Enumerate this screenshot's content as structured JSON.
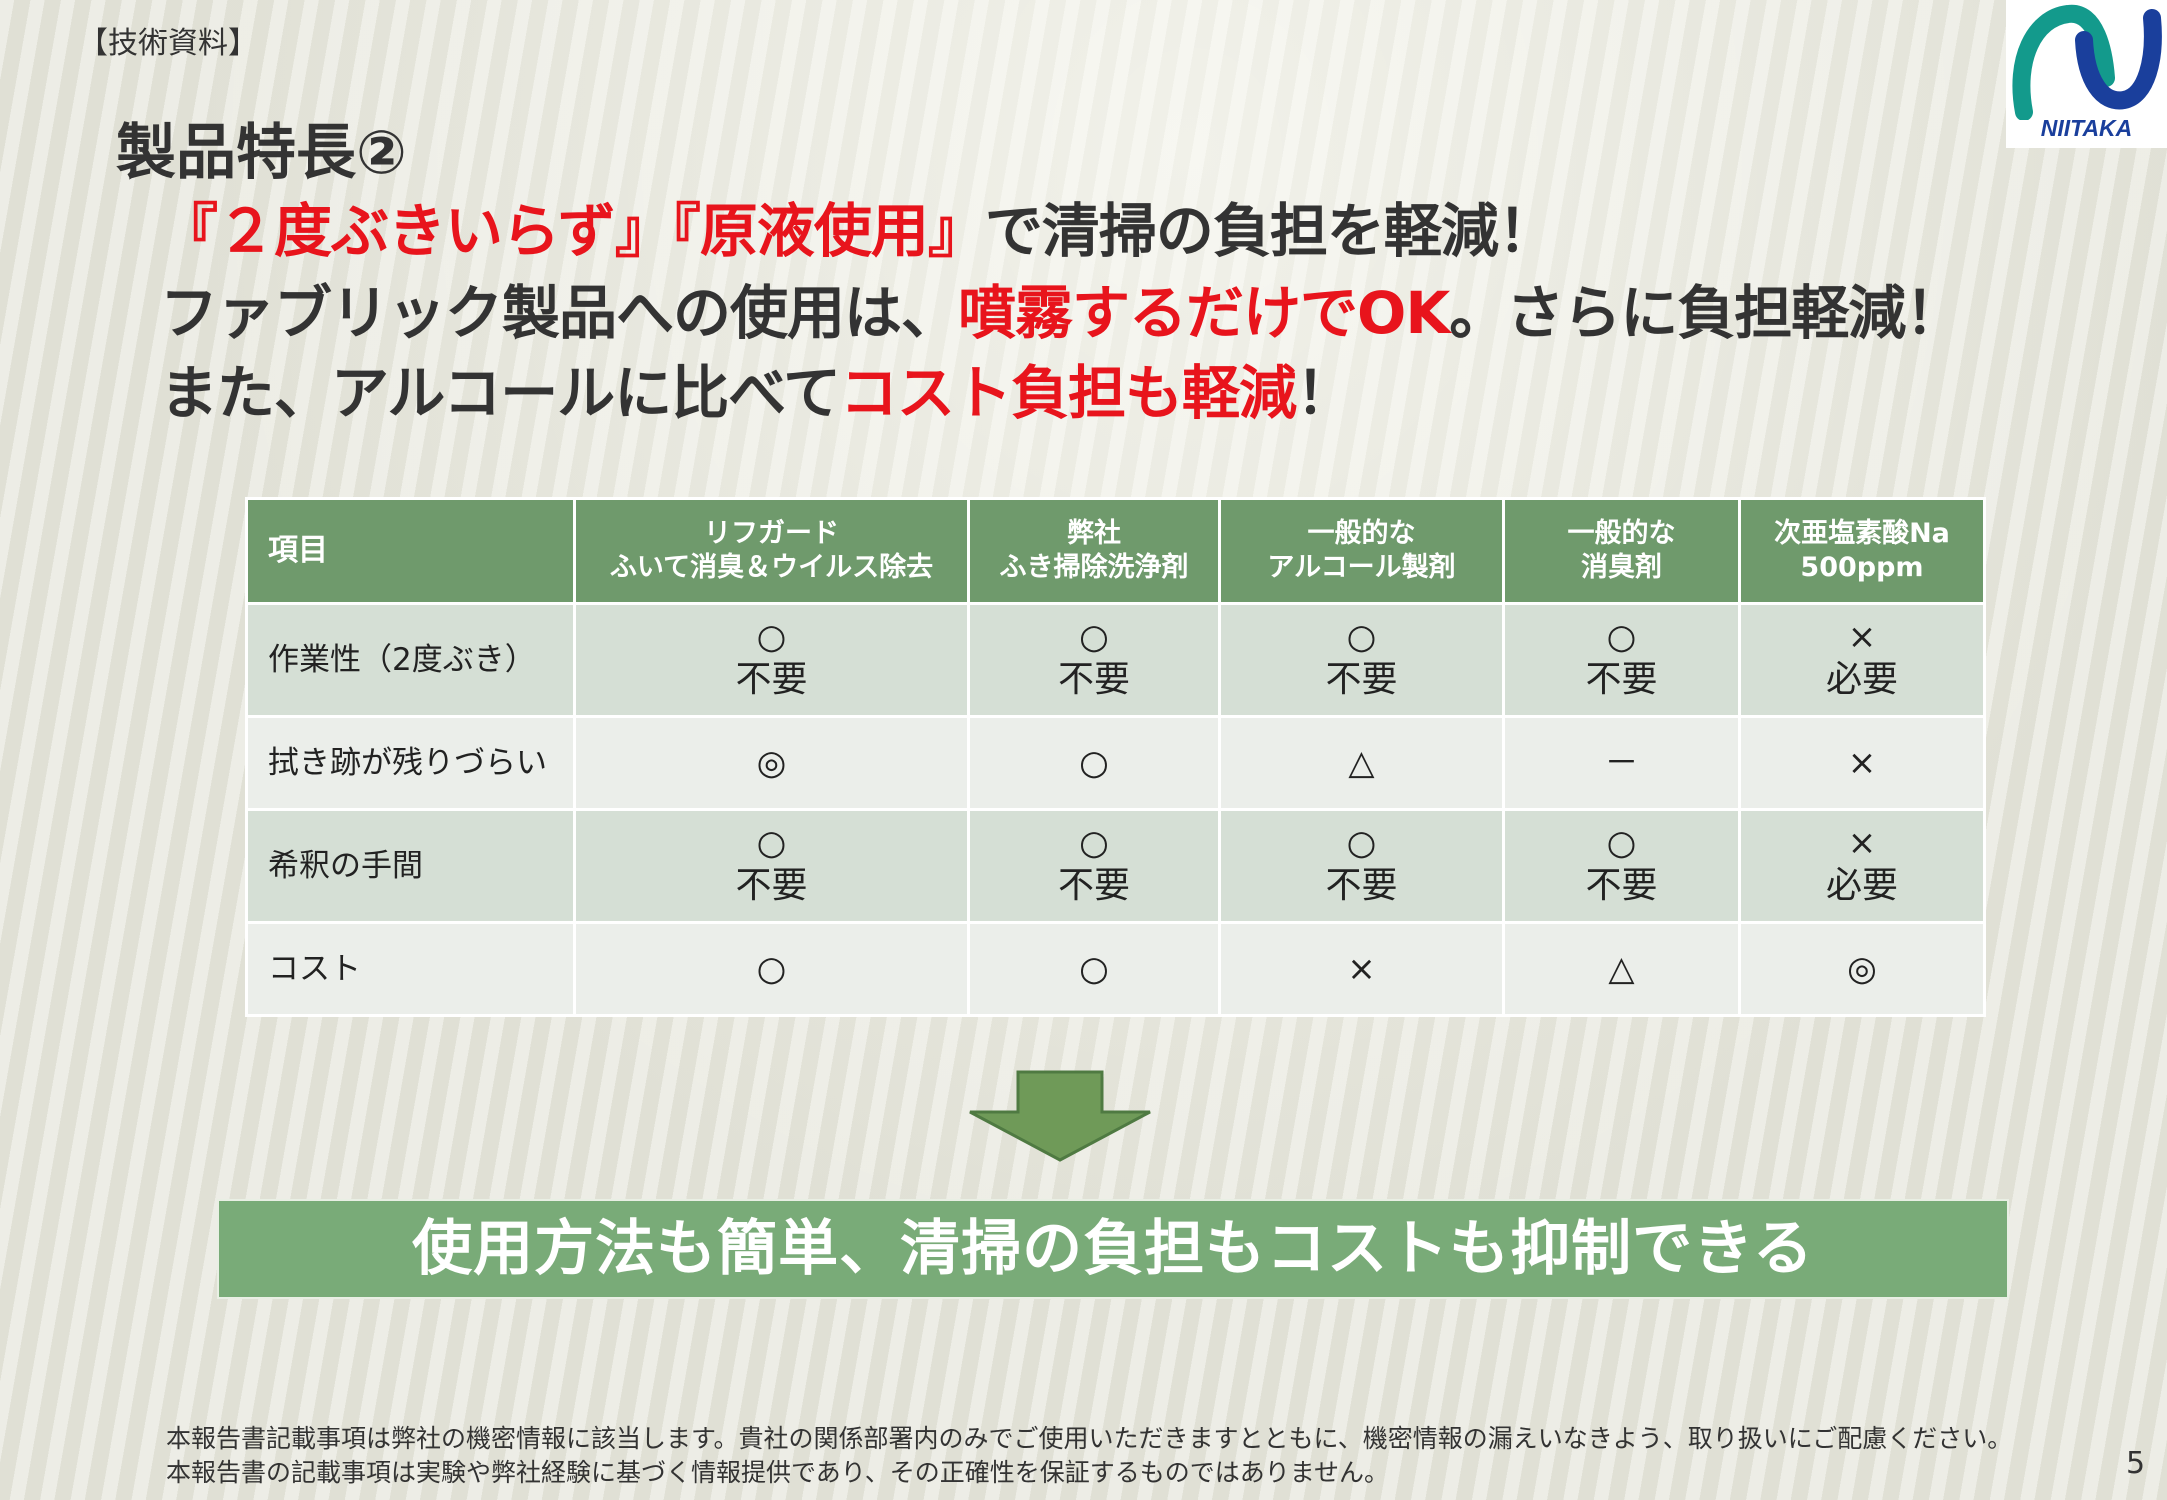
{
  "section_label": "【技術資料】",
  "logo": {
    "text": "NIITAKA",
    "colors": {
      "teal": "#139a8c",
      "blue": "#1a3f9c"
    }
  },
  "title": "製品特長②",
  "headline": {
    "line1": {
      "red": "『２度ぶきいらず』『原液使用』",
      "rest": "で清掃の負担を軽減！"
    },
    "line2": {
      "pre": "ファブリック製品への使用は、",
      "red": "噴霧するだけでOK",
      "post": "。さらに負担軽減！"
    },
    "line3": {
      "pre": "また、アルコールに比べて",
      "red": "コスト負担も軽減",
      "post": "！"
    }
  },
  "table": {
    "header": {
      "item": "項目",
      "columns": [
        {
          "line1": "リフガード",
          "line2": "ふいて消臭＆ウイルス除去"
        },
        {
          "line1": "弊社",
          "line2": "ふき掃除洗浄剤"
        },
        {
          "line1": "一般的な",
          "line2": "アルコール製剤"
        },
        {
          "line1": "一般的な",
          "line2": "消臭剤"
        },
        {
          "line1": "次亜塩素酸Na",
          "line2": "500ppm"
        }
      ]
    },
    "rows": [
      {
        "label": "作業性（2度ぶき）",
        "cells": [
          {
            "mark": "○",
            "text": "不要"
          },
          {
            "mark": "○",
            "text": "不要"
          },
          {
            "mark": "○",
            "text": "不要"
          },
          {
            "mark": "○",
            "text": "不要"
          },
          {
            "mark": "×",
            "text": "必要"
          }
        ]
      },
      {
        "label": "拭き跡が残りづらい",
        "cells": [
          {
            "mark": "◎"
          },
          {
            "mark": "○"
          },
          {
            "mark": "△"
          },
          {
            "mark": "－"
          },
          {
            "mark": "×"
          }
        ]
      },
      {
        "label": "希釈の手間",
        "cells": [
          {
            "mark": "○",
            "text": "不要"
          },
          {
            "mark": "○",
            "text": "不要"
          },
          {
            "mark": "○",
            "text": "不要"
          },
          {
            "mark": "○",
            "text": "不要"
          },
          {
            "mark": "×",
            "text": "必要"
          }
        ]
      },
      {
        "label": "コスト",
        "cells": [
          {
            "mark": "○"
          },
          {
            "mark": "○"
          },
          {
            "mark": "×"
          },
          {
            "mark": "△"
          },
          {
            "mark": "◎"
          }
        ]
      }
    ]
  },
  "banner": "使用方法も簡単、清掃の負担もコストも抑制できる",
  "footer": {
    "line1": "本報告書記載事項は弊社の機密情報に該当します。貴社の関係部署内のみでご使用いただきますとともに、機密情報の漏えいなきよう、取り扱いにご配慮ください。",
    "line2": "本報告書の記載事項は実験や弊社経験に基づく情報提供であり、その正確性を保証するものではありません。"
  },
  "page_number": "5",
  "colors": {
    "accent_red": "#e8141c",
    "table_header": "#6f9a6c",
    "banner": "#79ab78",
    "arrow": "#6f9a58"
  }
}
